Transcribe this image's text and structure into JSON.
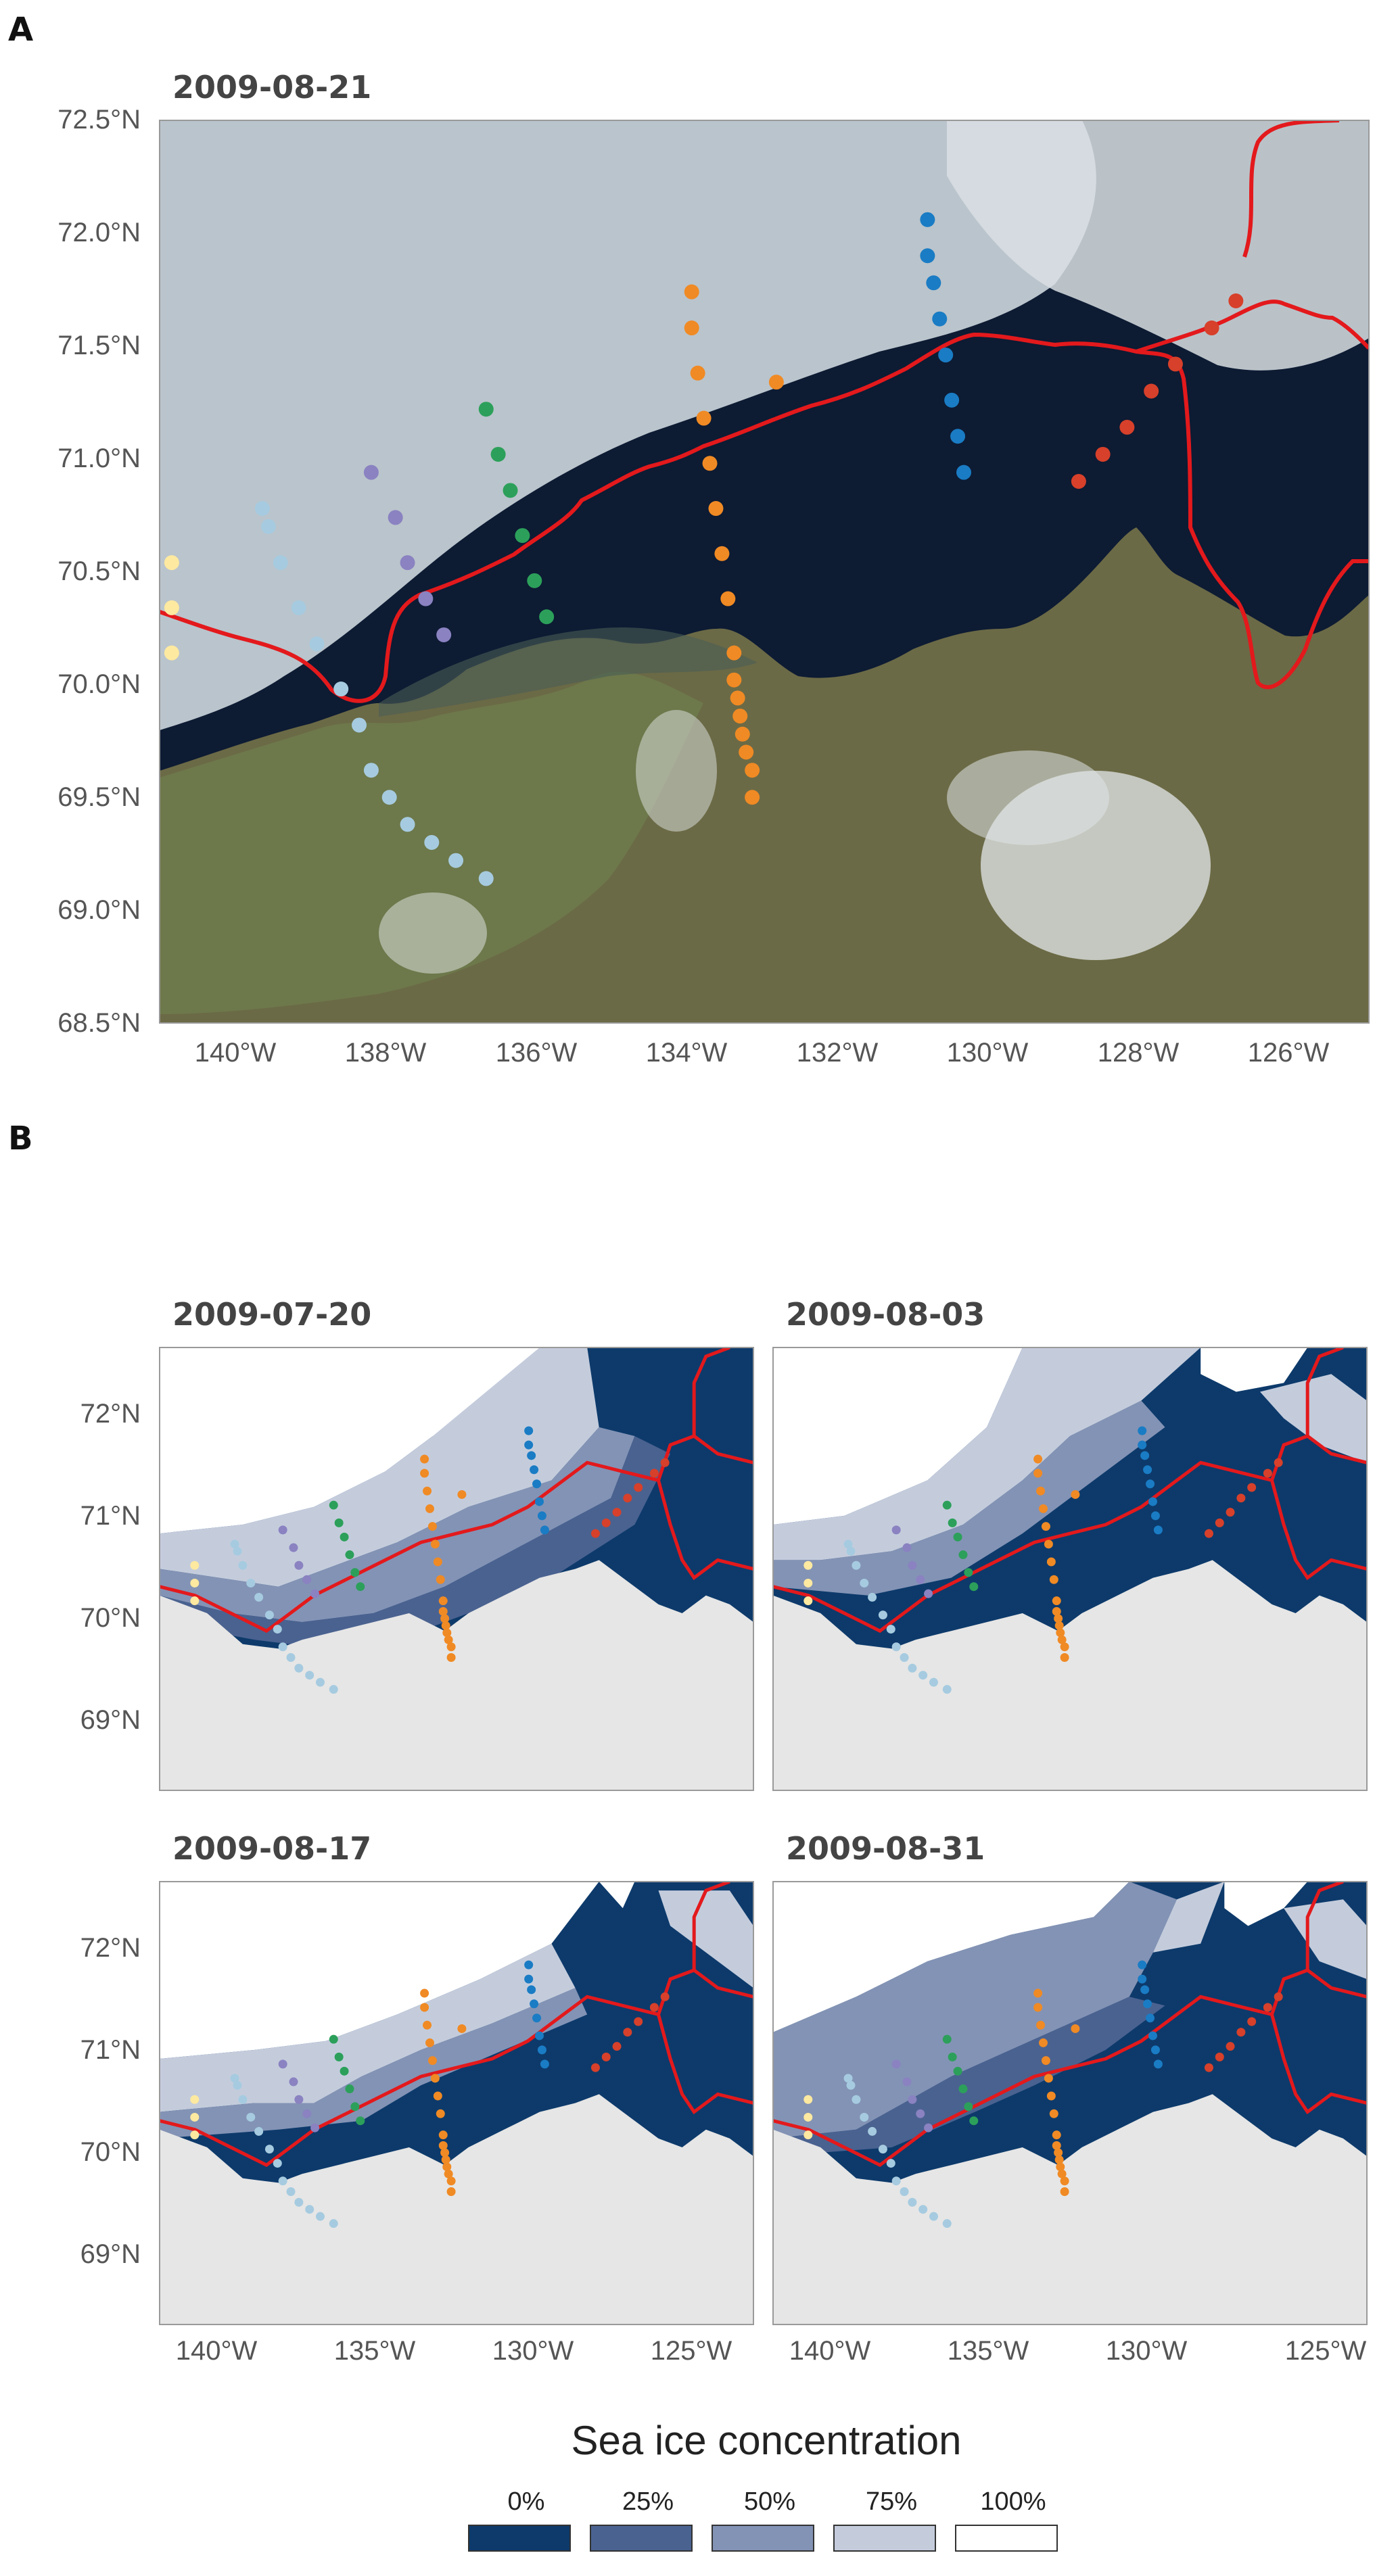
{
  "panel_a": {
    "letter": "A",
    "date": "2009-08-21",
    "y_ticks": [
      "72.5°N",
      "72.0°N",
      "71.5°N",
      "71.0°N",
      "70.5°N",
      "70.0°N",
      "69.5°N",
      "69.0°N",
      "68.5°N"
    ],
    "x_ticks": [
      "140°W",
      "138°W",
      "136°W",
      "134°W",
      "132°W",
      "130°W",
      "128°W",
      "126°W"
    ]
  },
  "panel_b": {
    "letter": "B",
    "maps": [
      {
        "date": "2009-07-20"
      },
      {
        "date": "2009-08-03"
      },
      {
        "date": "2009-08-17"
      },
      {
        "date": "2009-08-31"
      }
    ],
    "y_ticks": [
      "72°N",
      "71°N",
      "70°N",
      "69°N"
    ],
    "x_ticks": [
      "140°W",
      "135°W",
      "130°W",
      "125°W"
    ]
  },
  "legend": {
    "title": "Sea ice concentration",
    "items": [
      {
        "label": "0%",
        "color": "#0d3a6b"
      },
      {
        "label": "25%",
        "color": "#4a6290"
      },
      {
        "label": "50%",
        "color": "#8393b5"
      },
      {
        "label": "75%",
        "color": "#c4ccdc"
      },
      {
        "label": "100%",
        "color": "#ffffff"
      }
    ]
  },
  "colors": {
    "boundary_line": "#e3191c",
    "transect_colors": [
      "#fde9a0",
      "#a6cbe0",
      "#7fb3d0",
      "#8a82c1",
      "#2ca05a",
      "#f08a24",
      "#1a7cc4",
      "#d7402a"
    ]
  }
}
